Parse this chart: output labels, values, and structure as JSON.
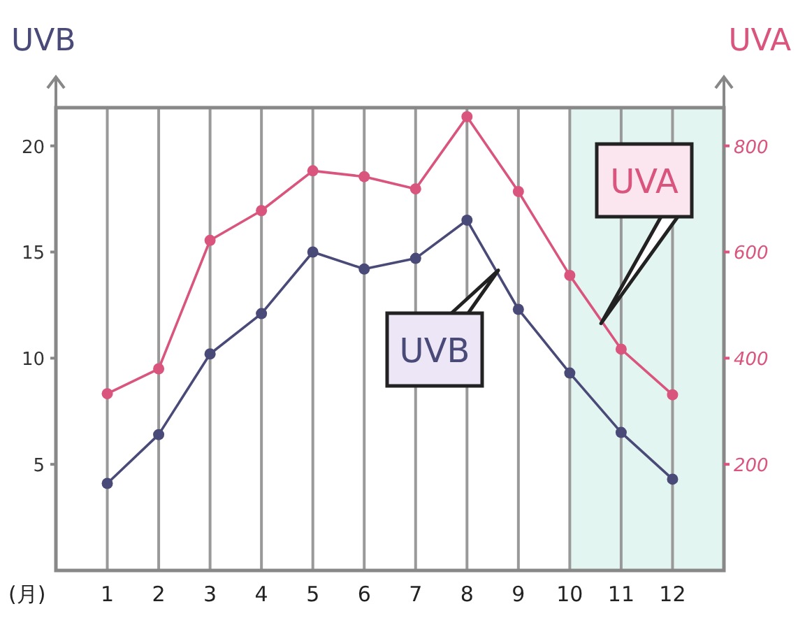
{
  "chart_data": {
    "type": "line",
    "ylabel": "UVB",
    "y2label": "UVA",
    "xlabel": "(月)",
    "x": [
      1,
      2,
      3,
      4,
      5,
      6,
      7,
      8,
      9,
      10,
      11,
      12
    ],
    "xlim": [
      0,
      13
    ],
    "xticks": [
      1,
      2,
      3,
      4,
      5,
      6,
      7,
      8,
      9,
      10,
      11,
      12
    ],
    "ylim": [
      0,
      21.8
    ],
    "yticks": [
      5,
      10,
      15,
      20
    ],
    "y2lim": [
      0,
      872
    ],
    "y2ticks": [
      200,
      400,
      600,
      800
    ],
    "grid": "x",
    "marker": "circle",
    "bands": [
      {
        "axis": "x",
        "from": 10,
        "to": 13,
        "color": "#e3f5f0"
      }
    ],
    "series": [
      {
        "name": "UVB",
        "color": "#4a4a78",
        "values": [
          4.1,
          6.4,
          10.2,
          12.1,
          15.0,
          14.2,
          14.7,
          16.5,
          12.3,
          9.3,
          6.5,
          4.3
        ]
      },
      {
        "name": "UVA",
        "color": "#d9557e",
        "axis": "y2",
        "values": [
          333,
          380,
          622,
          678,
          753,
          742,
          719,
          855,
          714,
          556,
          417,
          331
        ]
      }
    ]
  }
}
